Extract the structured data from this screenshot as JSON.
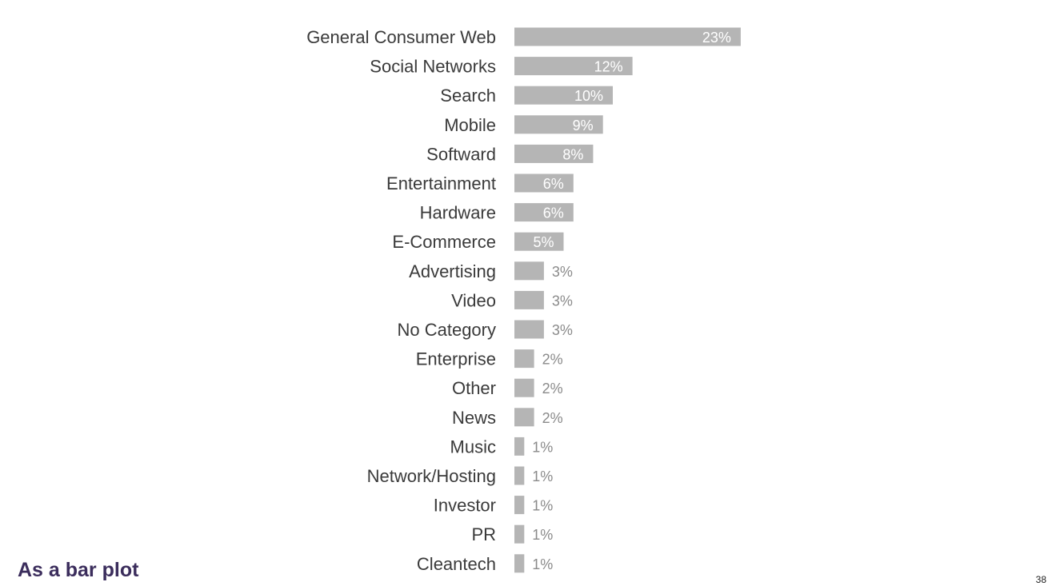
{
  "slide": {
    "title": "As a bar plot",
    "page_number": "38"
  },
  "colors": {
    "bar": "#b5b5b5",
    "label": "#3a3a3a",
    "value_inside": "#ffffff",
    "value_outside": "#8a8a8a",
    "title": "#3b2d5c"
  },
  "chart_data": {
    "type": "bar",
    "orientation": "horizontal",
    "categories": [
      "General Consumer Web",
      "Social Networks",
      "Search",
      "Mobile",
      "Softward",
      "Entertainment",
      "Hardware",
      "E-Commerce",
      "Advertising",
      "Video",
      "No Category",
      "Enterprise",
      "Other",
      "News",
      "Music",
      "Network/Hosting",
      "Investor",
      "PR",
      "Cleantech"
    ],
    "values": [
      23,
      12,
      10,
      9,
      8,
      6,
      6,
      5,
      3,
      3,
      3,
      2,
      2,
      2,
      1,
      1,
      1,
      1,
      1
    ],
    "data_labels": [
      "23%",
      "12%",
      "10%",
      "9%",
      "8%",
      "6%",
      "6%",
      "5%",
      "3%",
      "3%",
      "3%",
      "2%",
      "2%",
      "2%",
      "1%",
      "1%",
      "1%",
      "1%",
      "1%"
    ],
    "unit": "%",
    "title": "",
    "xlabel": "",
    "ylabel": "",
    "grid": false,
    "legend": "none"
  }
}
